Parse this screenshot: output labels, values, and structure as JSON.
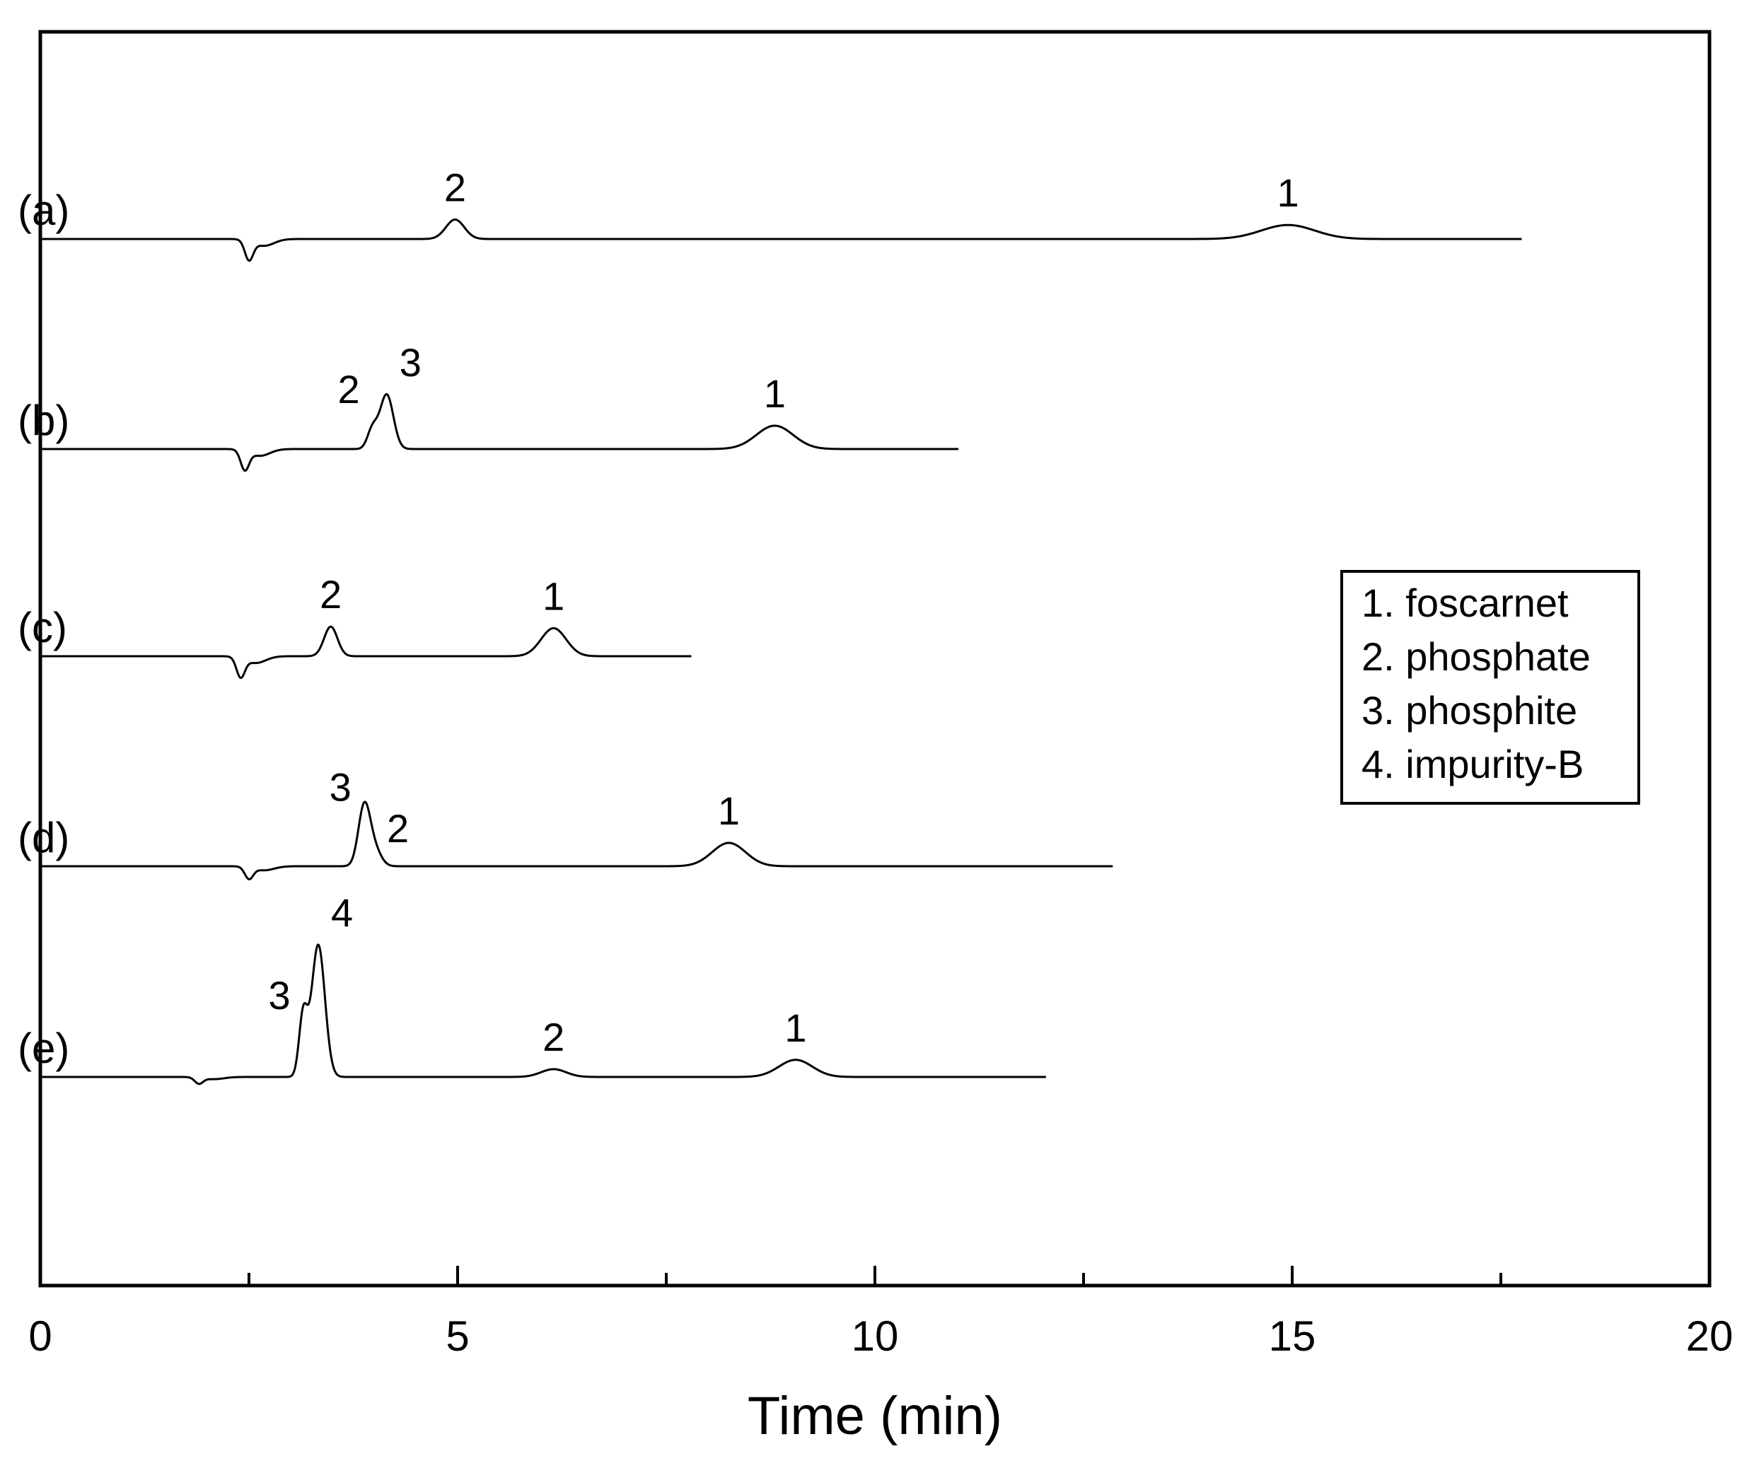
{
  "chart_data": {
    "type": "line",
    "title": "",
    "xlabel": "Time (min)",
    "ylabel": "",
    "xlim": [
      0,
      20
    ],
    "xticks": [
      0,
      5,
      10,
      15,
      20
    ],
    "xtick_labels": [
      "0",
      "5",
      "10",
      "15",
      "20"
    ],
    "minor_xticks": [
      2.5,
      7.5,
      12.5,
      17.5
    ],
    "legend": {
      "placement": "right",
      "entries": [
        "1. foscarnet",
        "2. phosphate",
        "3. phosphite",
        "4. impurity-B"
      ]
    },
    "series": [
      {
        "name": "(a)",
        "label": "(a)",
        "end_time": 17.75,
        "dip": {
          "time": 2.5,
          "depth": 0.25
        },
        "peaks": [
          {
            "label": "2",
            "time": 4.97,
            "height": 0.25,
            "width": 0.11
          },
          {
            "label": "1",
            "time": 14.95,
            "height": 0.18,
            "width": 0.32
          }
        ]
      },
      {
        "name": "(b)",
        "label": "(b)",
        "end_time": 11.0,
        "dip": {
          "time": 2.45,
          "depth": 0.25
        },
        "peaks": [
          {
            "label": "2",
            "time": 3.98,
            "height": 0.25,
            "width": 0.06
          },
          {
            "label": "3",
            "time": 4.15,
            "height": 0.7,
            "width": 0.08
          },
          {
            "label": "1",
            "time": 8.8,
            "height": 0.3,
            "width": 0.22
          }
        ]
      },
      {
        "name": "(c)",
        "label": "(c)",
        "end_time": 7.8,
        "dip": {
          "time": 2.4,
          "depth": 0.25
        },
        "peaks": [
          {
            "label": "2",
            "time": 3.48,
            "height": 0.38,
            "width": 0.08
          },
          {
            "label": "1",
            "time": 6.15,
            "height": 0.36,
            "width": 0.15
          }
        ]
      },
      {
        "name": "(d)",
        "label": "(d)",
        "end_time": 12.85,
        "dip": {
          "time": 2.5,
          "depth": 0.15
        },
        "peaks": [
          {
            "label": "3",
            "time": 3.88,
            "height": 0.75,
            "width": 0.07
          },
          {
            "label": "2",
            "time": 4.0,
            "height": 0.22,
            "width": 0.08
          },
          {
            "label": "1",
            "time": 8.25,
            "height": 0.3,
            "width": 0.2
          }
        ]
      },
      {
        "name": "(e)",
        "label": "(e)",
        "end_time": 12.05,
        "dip": {
          "time": 1.9,
          "depth": 0.08
        },
        "peaks": [
          {
            "label": "3",
            "time": 3.15,
            "height": 0.78,
            "width": 0.05
          },
          {
            "label": "4",
            "time": 3.33,
            "height": 1.7,
            "width": 0.08
          },
          {
            "label": "2",
            "time": 6.15,
            "height": 0.1,
            "width": 0.15
          },
          {
            "label": "1",
            "time": 9.05,
            "height": 0.22,
            "width": 0.2
          }
        ]
      }
    ]
  }
}
